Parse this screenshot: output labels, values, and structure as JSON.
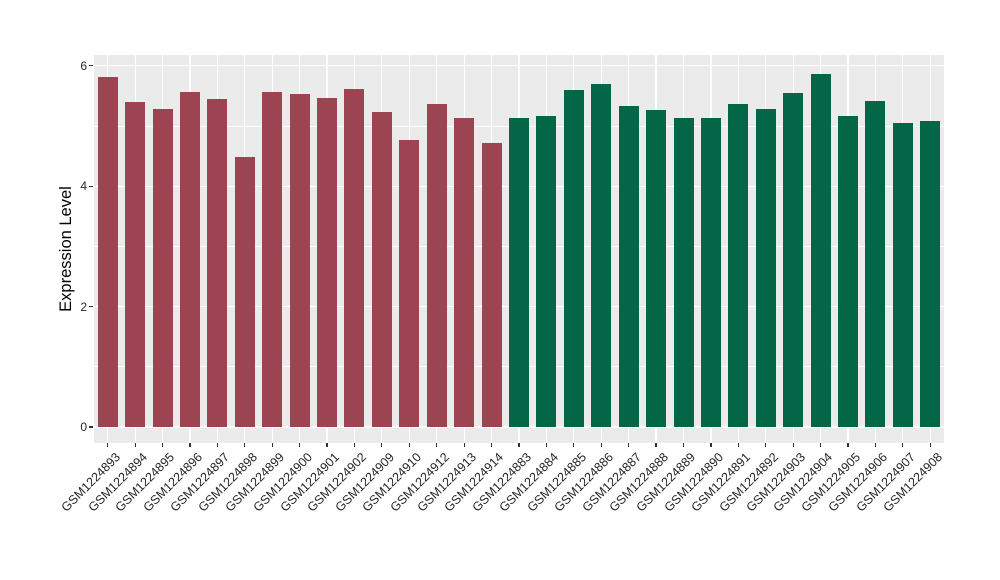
{
  "chart_data": {
    "type": "bar",
    "title": "",
    "xlabel": "",
    "ylabel": "Expression Level",
    "ylim": [
      0,
      6.18
    ],
    "yticks_major": [
      0,
      2,
      4,
      6
    ],
    "yticks_minor": [
      1,
      3,
      5
    ],
    "grid": true,
    "legend_position": "none",
    "panel_bg_color": "#EBEBEB",
    "grid_color": "#FFFFFF",
    "group_colors": {
      "group1": "#9D4452",
      "group2": "#026647"
    },
    "categories": [
      "GSM1224893",
      "GSM1224894",
      "GSM1224895",
      "GSM1224896",
      "GSM1224897",
      "GSM1224898",
      "GSM1224899",
      "GSM1224900",
      "GSM1224901",
      "GSM1224902",
      "GSM1224909",
      "GSM1224910",
      "GSM1224912",
      "GSM1224913",
      "GSM1224914",
      "GSM1224883",
      "GSM1224884",
      "GSM1224885",
      "GSM1224886",
      "GSM1224887",
      "GSM1224888",
      "GSM1224889",
      "GSM1224890",
      "GSM1224891",
      "GSM1224892",
      "GSM1224903",
      "GSM1224904",
      "GSM1224905",
      "GSM1224906",
      "GSM1224907",
      "GSM1224908"
    ],
    "bar_group": [
      "group1",
      "group1",
      "group1",
      "group1",
      "group1",
      "group1",
      "group1",
      "group1",
      "group1",
      "group1",
      "group1",
      "group1",
      "group1",
      "group1",
      "group1",
      "group2",
      "group2",
      "group2",
      "group2",
      "group2",
      "group2",
      "group2",
      "group2",
      "group2",
      "group2",
      "group2",
      "group2",
      "group2",
      "group2",
      "group2",
      "group2"
    ],
    "series": [
      {
        "name": "Expression Level",
        "values": [
          5.82,
          5.4,
          5.28,
          5.56,
          5.45,
          4.49,
          5.56,
          5.53,
          5.47,
          5.62,
          5.23,
          4.77,
          5.37,
          5.13,
          4.71,
          5.14,
          5.17,
          5.6,
          5.69,
          5.33,
          5.27,
          5.13,
          5.14,
          5.37,
          5.28,
          5.54,
          5.86,
          5.17,
          5.41,
          5.05,
          5.09
        ]
      }
    ]
  }
}
